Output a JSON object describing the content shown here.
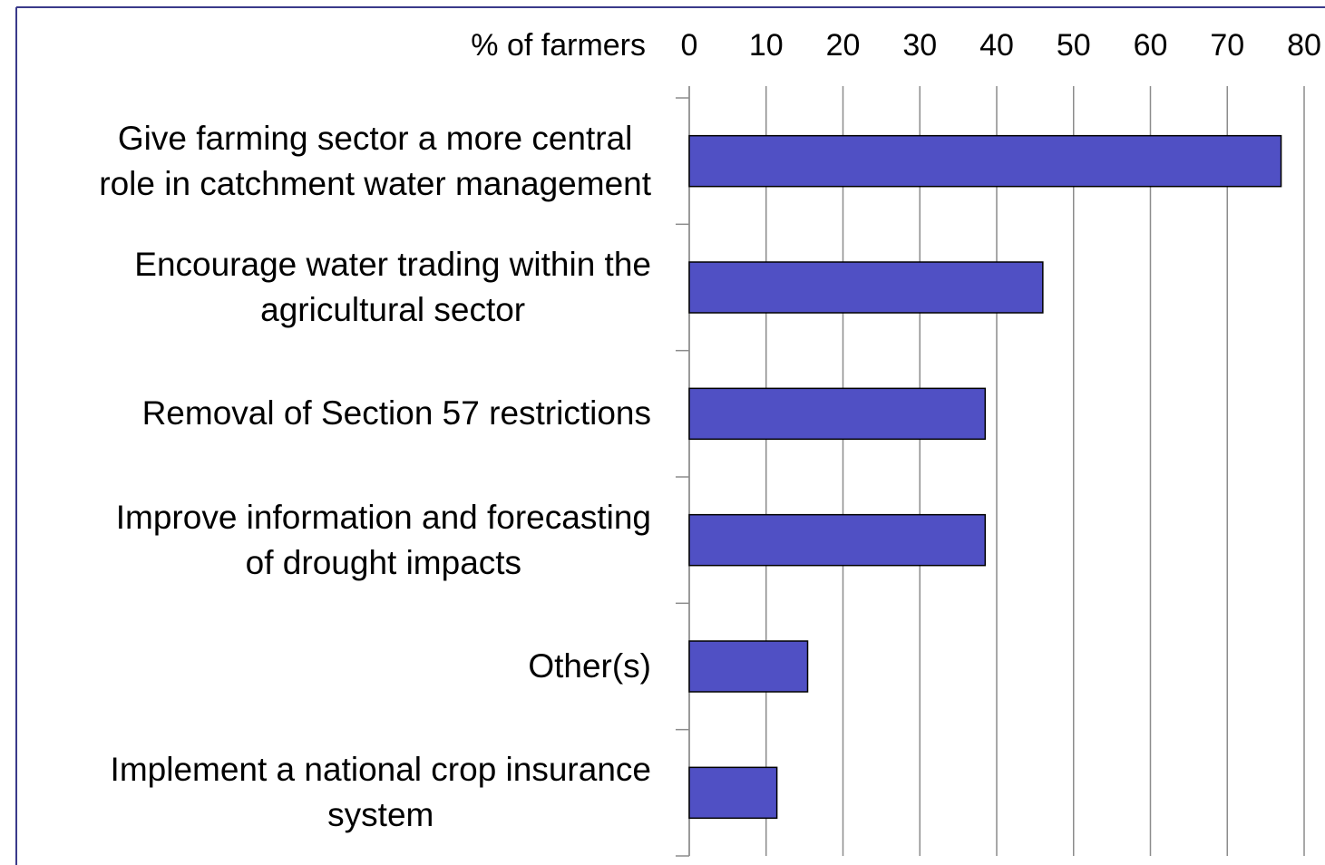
{
  "chart_data": {
    "type": "bar",
    "orientation": "horizontal",
    "xlabel": "% of farmers",
    "categories": [
      "Give farming sector a more central\nrole in catchment water management",
      "Encourage water trading within the\nagricultural sector",
      "Removal of Section 57 restrictions",
      "Improve information and forecasting\nof drought impacts",
      "Other(s)",
      "Implement a national crop insurance\nsystem"
    ],
    "values": [
      77,
      46,
      38.5,
      38.5,
      15.4,
      11.4
    ],
    "color": "#5050c4",
    "xlim": [
      0,
      80
    ],
    "xticks": [
      0,
      10,
      20,
      30,
      40,
      50,
      60,
      70,
      80
    ],
    "grid": true
  }
}
